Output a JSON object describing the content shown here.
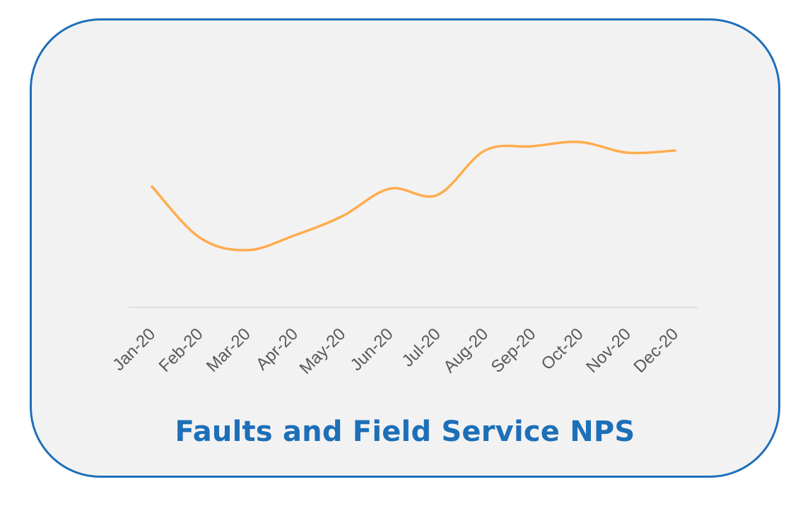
{
  "chart_data": {
    "type": "line",
    "title": "Faults and Field Service NPS",
    "categories": [
      "Jan-20",
      "Feb-20",
      "Mar-20",
      "Apr-20",
      "May-20",
      "Jun-20",
      "Jul-20",
      "Aug-20",
      "Sep-20",
      "Oct-20",
      "Nov-20",
      "Dec-20"
    ],
    "series": [
      {
        "values": [
          57,
          33,
          27,
          34,
          43,
          56,
          53,
          74,
          76,
          78,
          73,
          74
        ]
      }
    ],
    "ylim": [
      0,
      100
    ],
    "grid": false,
    "legend": "none",
    "line_color": "#ffac4d",
    "axis_color": "#d9d9d9"
  }
}
